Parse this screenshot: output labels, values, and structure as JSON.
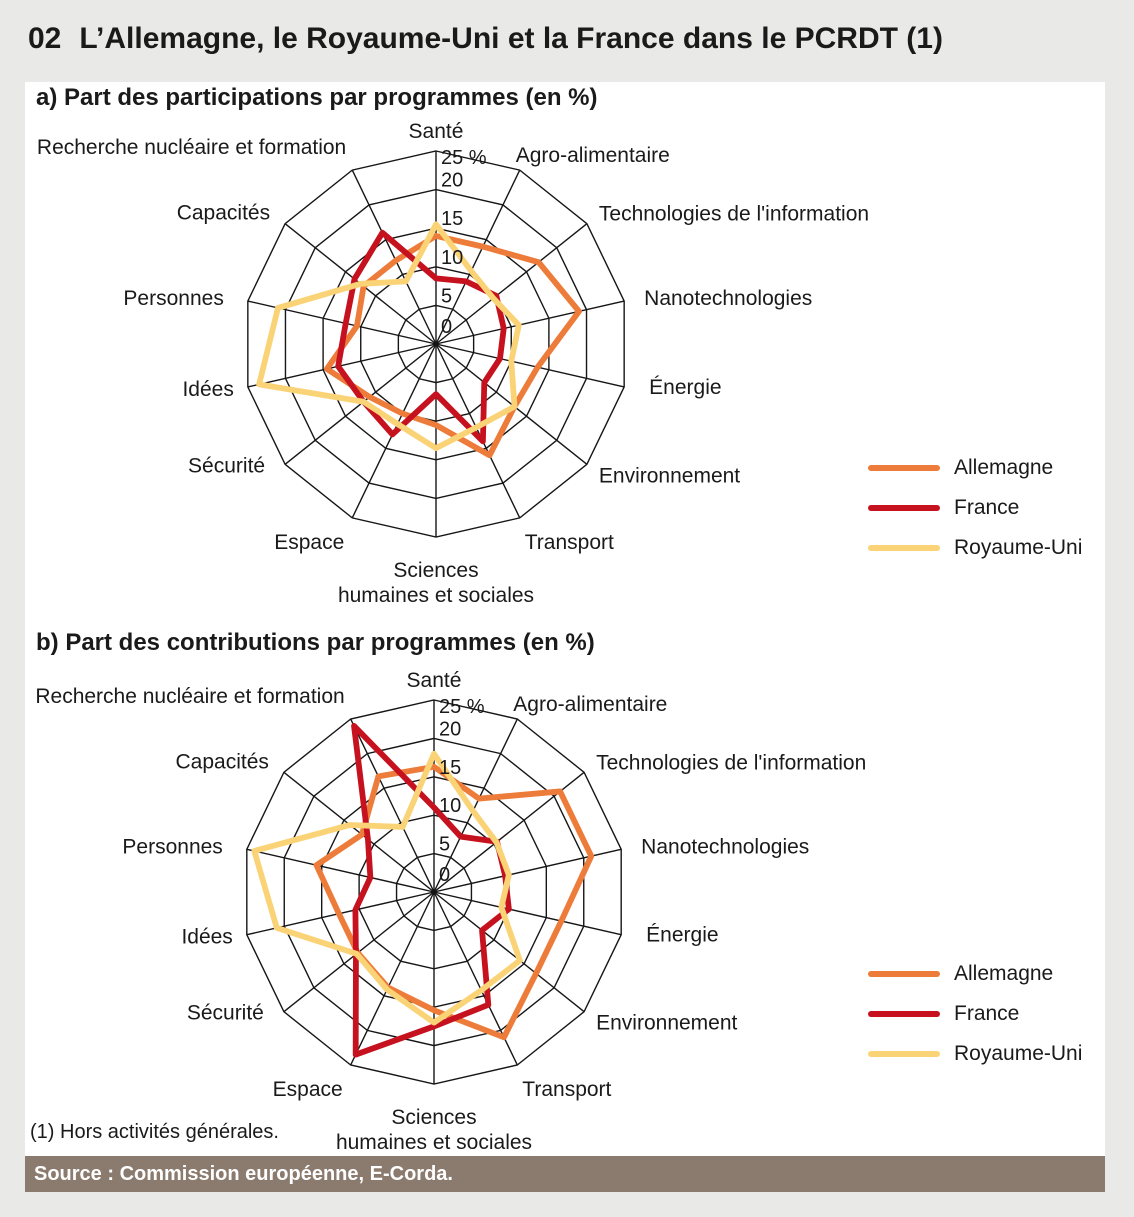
{
  "page": {
    "title_num": "02",
    "title": "L’Allemagne, le Royaume-Uni et la France dans le PCRDT (1)",
    "footnote": "(1) Hors activités générales.",
    "source": "Source : Commission européenne, E-Corda."
  },
  "legend": {
    "items": [
      {
        "label": "Allemagne",
        "color": "#ed7c3a"
      },
      {
        "label": "France",
        "color": "#c6121f"
      },
      {
        "label": "Royaume-Uni",
        "color": "#fbd377"
      }
    ]
  },
  "chart_data": [
    {
      "type": "radar",
      "title": "a) Part des participations par programmes (en %)",
      "unit": "%",
      "rmax": 25,
      "rticks": [
        0,
        5,
        10,
        15,
        20,
        25
      ],
      "grid": "on",
      "legend_position": "right",
      "categories": [
        "Santé",
        "Agro-alimentaire",
        "Technologies de l'information",
        "Nanotechnologies",
        "Énergie",
        "Environnement",
        "Transport",
        "Sciences\nhumaines et sociales",
        "Espace",
        "Sécurité",
        "Idées",
        "Personnes",
        "Capacités",
        "Recherche nucléaire et formation"
      ],
      "series": [
        {
          "name": "Allemagne",
          "color": "#ed7c3a",
          "values": [
            14,
            14,
            17,
            19,
            13.5,
            13,
            16,
            10.5,
            10,
            11,
            14.5,
            10.5,
            12,
            12
          ]
        },
        {
          "name": "France",
          "color": "#c6121f",
          "values": [
            8.5,
            9,
            10,
            9,
            8.5,
            8,
            14,
            6.5,
            13,
            12,
            13,
            12,
            13.5,
            16
          ]
        },
        {
          "name": "Royaume-Uni",
          "color": "#fbd377",
          "values": [
            15.5,
            10.5,
            9.5,
            11,
            10,
            13,
            12,
            13.5,
            11.5,
            12,
            23.5,
            21,
            12.5,
            9
          ]
        }
      ]
    },
    {
      "type": "radar",
      "title": "b) Part des contributions par programmes (en %)",
      "unit": "%",
      "rmax": 25,
      "rticks": [
        0,
        5,
        10,
        15,
        20,
        25
      ],
      "grid": "on",
      "legend_position": "right",
      "categories": [
        "Santé",
        "Agro-alimentaire",
        "Technologies de l'information",
        "Nanotechnologies",
        "Énergie",
        "Environnement",
        "Transport",
        "Sciences\nhumaines et sociales",
        "Espace",
        "Sécurité",
        "Idées",
        "Personnes",
        "Capacités",
        "Recherche nucléaire et formation"
      ],
      "series": [
        {
          "name": "Allemagne",
          "color": "#ed7c3a",
          "values": [
            16.3,
            13.5,
            21,
            21,
            17,
            17,
            21,
            15.4,
            13.8,
            12.7,
            12.7,
            15.7,
            12,
            16.7
          ]
        },
        {
          "name": "France",
          "color": "#c6121f",
          "values": [
            11,
            8,
            10.5,
            9.5,
            10,
            8,
            16.3,
            17.5,
            23.5,
            13,
            10.5,
            8.5,
            11,
            24
          ]
        },
        {
          "name": "Royaume-Uni",
          "color": "#fbd377",
          "values": [
            18,
            11.7,
            10.4,
            10,
            9,
            14.3,
            14.2,
            17,
            14.1,
            12.9,
            21,
            24,
            14,
            9.4
          ]
        }
      ]
    }
  ]
}
